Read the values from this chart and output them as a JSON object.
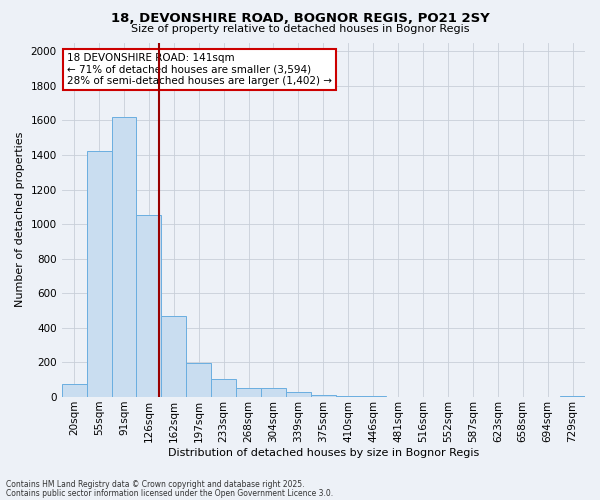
{
  "title1": "18, DEVONSHIRE ROAD, BOGNOR REGIS, PO21 2SY",
  "title2": "Size of property relative to detached houses in Bognor Regis",
  "xlabel": "Distribution of detached houses by size in Bognor Regis",
  "ylabel": "Number of detached properties",
  "categories": [
    "20sqm",
    "55sqm",
    "91sqm",
    "126sqm",
    "162sqm",
    "197sqm",
    "233sqm",
    "268sqm",
    "304sqm",
    "339sqm",
    "375sqm",
    "410sqm",
    "446sqm",
    "481sqm",
    "516sqm",
    "552sqm",
    "587sqm",
    "623sqm",
    "658sqm",
    "694sqm",
    "729sqm"
  ],
  "values": [
    75,
    1420,
    1620,
    1050,
    470,
    195,
    105,
    55,
    50,
    30,
    10,
    5,
    5,
    3,
    3,
    2,
    0,
    0,
    0,
    0,
    5
  ],
  "bar_color": "#c9ddf0",
  "bar_edge_color": "#6aaee0",
  "vline_color": "#990000",
  "vline_pos": 3.42,
  "ylim": [
    0,
    2050
  ],
  "yticks": [
    0,
    200,
    400,
    600,
    800,
    1000,
    1200,
    1400,
    1600,
    1800,
    2000
  ],
  "annotation_text": "18 DEVONSHIRE ROAD: 141sqm\n← 71% of detached houses are smaller (3,594)\n28% of semi-detached houses are larger (1,402) →",
  "annotation_box_color": "#ffffff",
  "annotation_box_edge": "#cc0000",
  "footer1": "Contains HM Land Registry data © Crown copyright and database right 2025.",
  "footer2": "Contains public sector information licensed under the Open Government Licence 3.0.",
  "bg_color": "#edf1f7",
  "plot_bg_color": "#edf1f7",
  "grid_color": "#c8cfd8"
}
